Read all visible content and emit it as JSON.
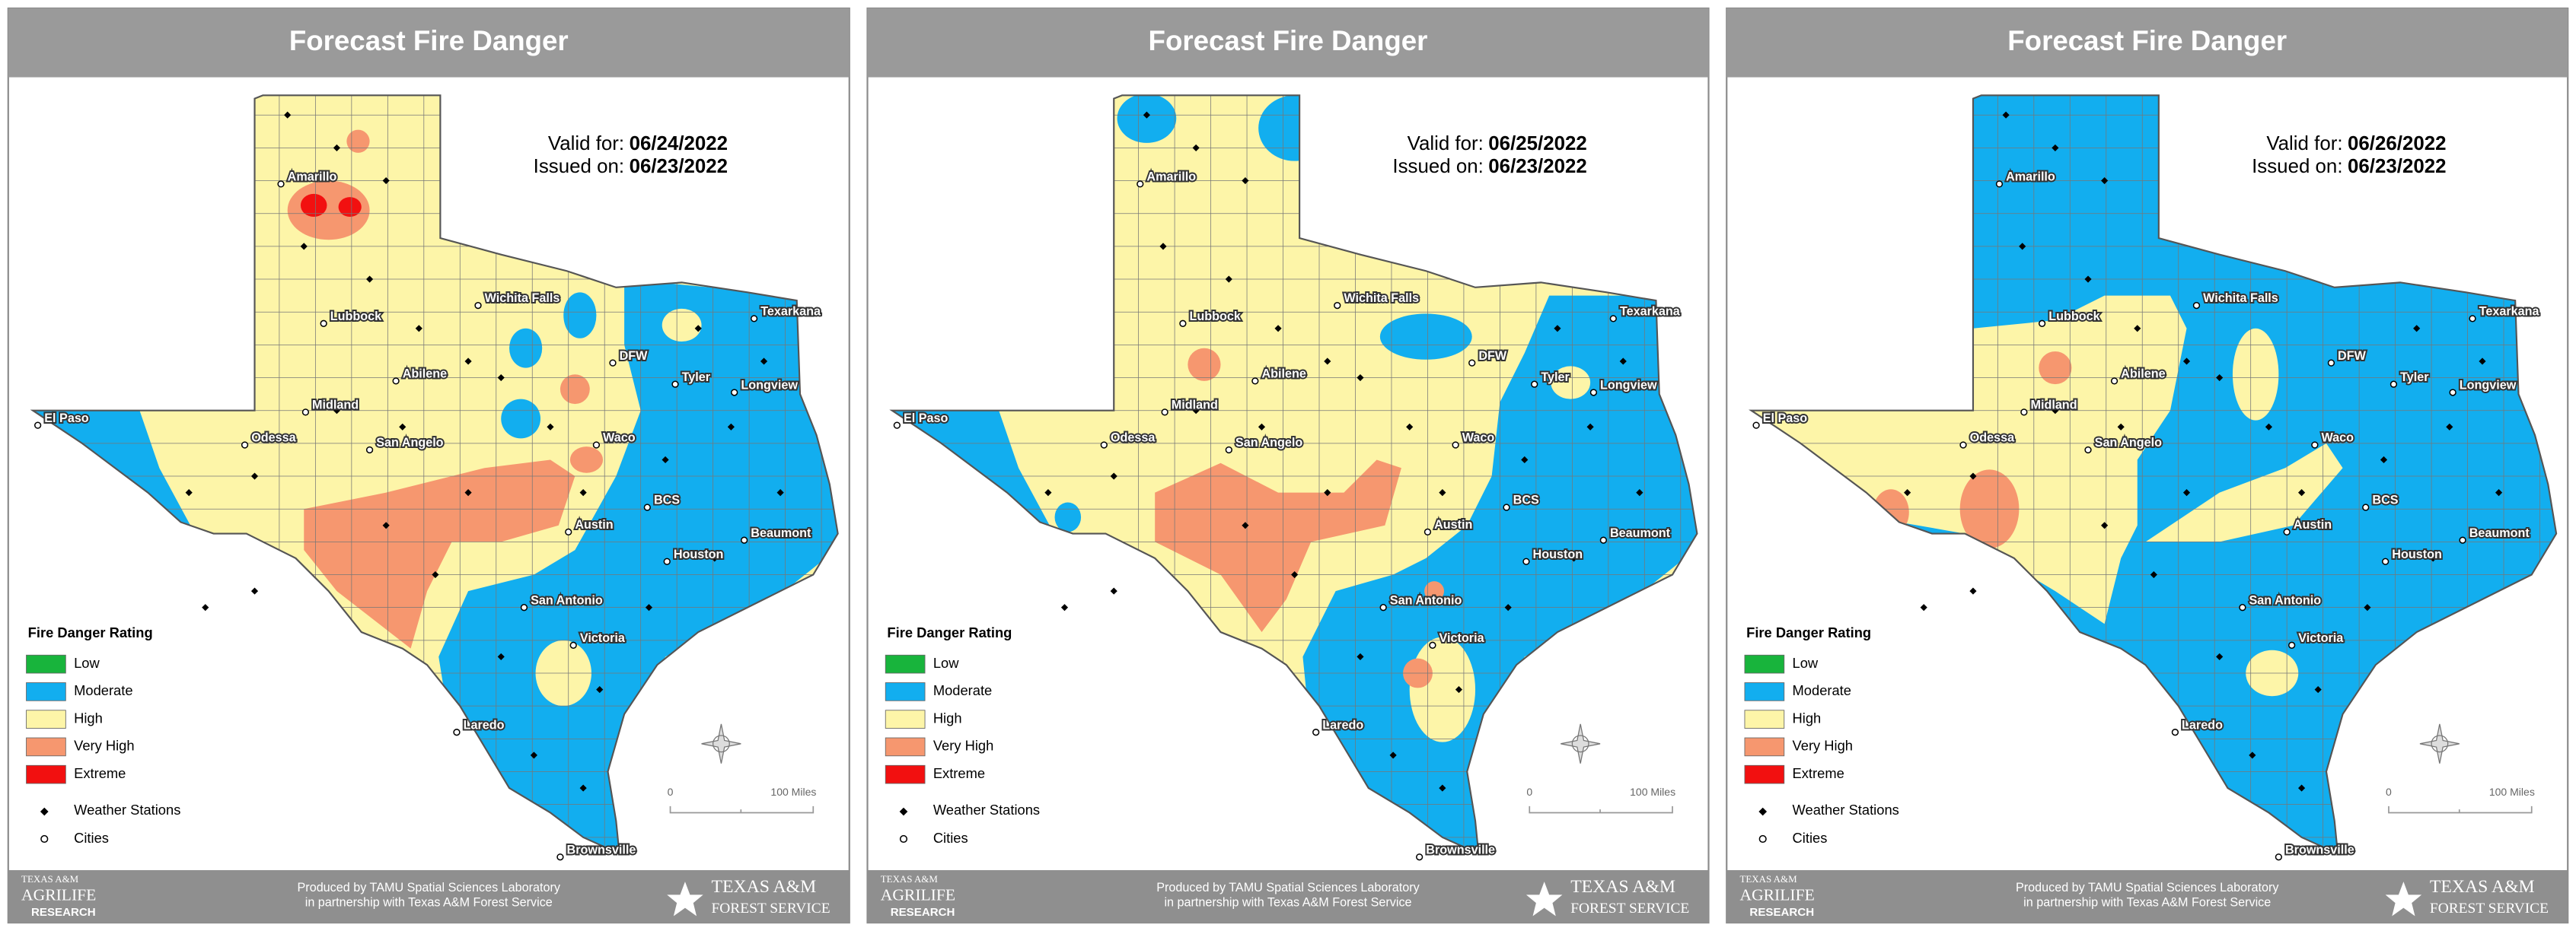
{
  "panels": [
    {
      "title": "Forecast Fire Danger",
      "valid_label": "Valid for:",
      "valid_date": "06/24/2022",
      "issued_label": "Issued on:",
      "issued_date": "06/23/2022"
    },
    {
      "title": "Forecast Fire Danger",
      "valid_label": "Valid for:",
      "valid_date": "06/25/2022",
      "issued_label": "Issued on:",
      "issued_date": "06/23/2022"
    },
    {
      "title": "Forecast Fire Danger",
      "valid_label": "Valid for:",
      "valid_date": "06/26/2022",
      "issued_label": "Issued on:",
      "issued_date": "06/23/2022"
    }
  ],
  "legend": {
    "title": "Fire Danger Rating",
    "items": [
      {
        "label": "Low",
        "color": "#18b43c"
      },
      {
        "label": "Moderate",
        "color": "#12aeef"
      },
      {
        "label": "High",
        "color": "#fdf5a8"
      },
      {
        "label": "Very High",
        "color": "#f6976f"
      },
      {
        "label": "Extreme",
        "color": "#f21010"
      }
    ],
    "stations": "Weather Stations",
    "cities": "Cities"
  },
  "cities": [
    "El Paso",
    "Amarillo",
    "Lubbock",
    "Wichita Falls",
    "Texarkana",
    "DFW",
    "Tyler",
    "Longview",
    "Abilene",
    "Midland",
    "Odessa",
    "San Angelo",
    "Waco",
    "Austin",
    "BCS",
    "Beaumont",
    "Houston",
    "San Antonio",
    "Victoria",
    "Laredo",
    "Brownsville"
  ],
  "scale": {
    "start": "0",
    "end": "100 Miles"
  },
  "footer": {
    "line1": "Produced by TAMU Spatial Sciences Laboratory",
    "line2": "in partnership with Texas A&M Forest Service",
    "left_logo_top": "TEXAS A&M",
    "left_logo_main": "AGRILIFE",
    "left_logo_sub": "RESEARCH",
    "right_logo_top": "TEXAS A&M",
    "right_logo_sub": "FOREST SERVICE"
  }
}
